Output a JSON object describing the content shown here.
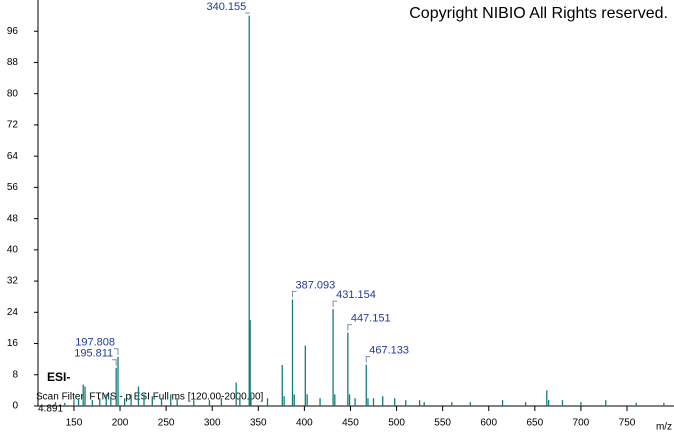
{
  "chart_data": {
    "type": "spectrum",
    "title": "Copyright NIBIO All Rights reserved.",
    "ionization": "ESI-",
    "scan_filter": "Scan Filter: FTMS - p ESI Full ms [120.00-2000.00]",
    "intensity_level": "4.891",
    "x_label": "m/z",
    "color": "#157a7a",
    "label_color": "#1f3a9e",
    "x": [
      130,
      140,
      150,
      155,
      160,
      162,
      170,
      178,
      185,
      190,
      195.811,
      197.808,
      205,
      212,
      220,
      226,
      235,
      245,
      255,
      262,
      280,
      297,
      310,
      326,
      330,
      340.155,
      341.158,
      342,
      360,
      376,
      378,
      387.093,
      389,
      401,
      403,
      417,
      431.154,
      433,
      447.151,
      449,
      455,
      467.133,
      469,
      475,
      485,
      498,
      510,
      525,
      530,
      560,
      580,
      615,
      640,
      663,
      665,
      680,
      700,
      727,
      760,
      790
    ],
    "values": [
      1,
      0.8,
      1.5,
      2,
      5.5,
      5,
      1.5,
      2,
      3,
      2.5,
      9.8,
      12.6,
      2,
      3,
      5,
      3,
      2.5,
      2,
      3,
      2,
      1.5,
      1.5,
      2,
      6,
      2.5,
      100,
      22,
      3,
      2,
      10.5,
      2.5,
      27.3,
      3,
      15.5,
      3,
      2,
      24.8,
      3,
      18.8,
      3,
      2,
      10.6,
      2,
      2,
      2.5,
      2,
      1.5,
      1.5,
      1,
      1,
      1,
      1.5,
      1,
      4,
      1.5,
      1.5,
      1,
      1.5,
      0.8,
      0.8
    ],
    "labels": [
      null,
      null,
      null,
      null,
      null,
      null,
      null,
      null,
      null,
      null,
      "195.811",
      "197.808",
      null,
      null,
      null,
      null,
      null,
      null,
      null,
      null,
      null,
      null,
      null,
      null,
      null,
      "340.155",
      null,
      null,
      null,
      null,
      null,
      "387.093",
      null,
      null,
      null,
      null,
      "431.154",
      null,
      "447.151",
      null,
      null,
      "467.133",
      null,
      null,
      null,
      null,
      null,
      null,
      null,
      null,
      null,
      null,
      null,
      null,
      null,
      null,
      null,
      null,
      null,
      null
    ],
    "xlim": [
      111,
      801
    ],
    "ylim": [
      0,
      104
    ],
    "xticks": [
      150,
      200,
      250,
      300,
      350,
      400,
      450,
      500,
      550,
      600,
      650,
      700,
      750
    ],
    "yticks": [
      0,
      8,
      16,
      24,
      32,
      40,
      48,
      56,
      64,
      72,
      80,
      88,
      96
    ]
  }
}
